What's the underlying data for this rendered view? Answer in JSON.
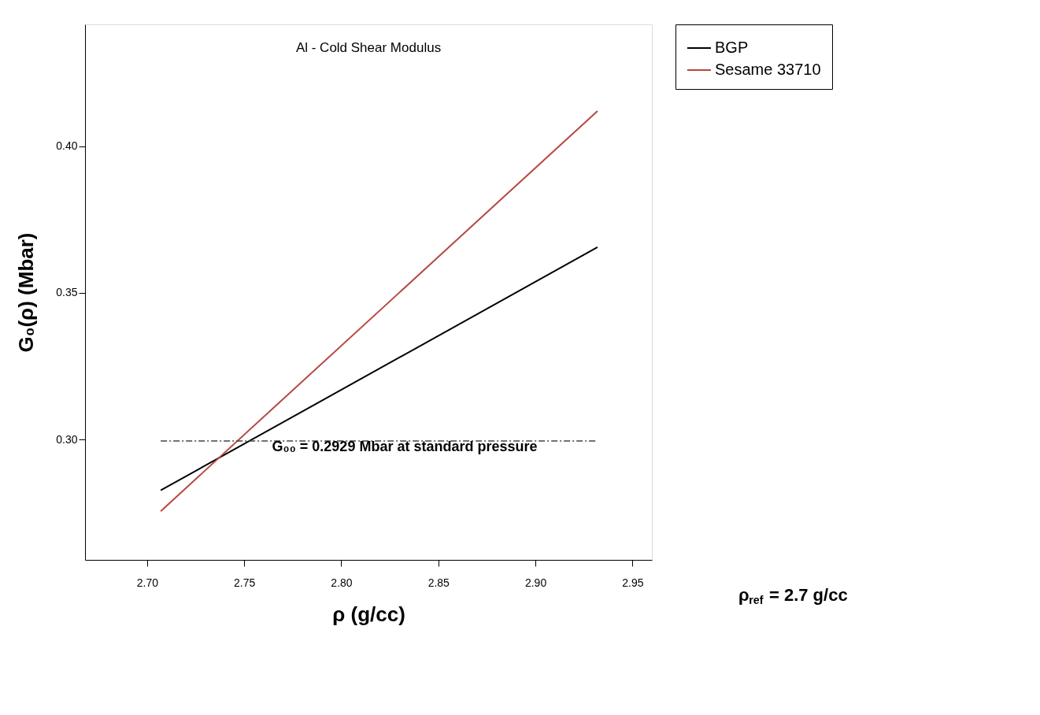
{
  "chart_data": {
    "type": "line",
    "title": "Al - Cold Shear Modulus",
    "xlabel": "ρ (g/cc)",
    "ylabel": "G₀(ρ) (Mbar)",
    "xlim": [
      2.668,
      2.96
    ],
    "xticks": [
      {
        "value": 2.7,
        "label": "2.70"
      },
      2.75,
      {
        "value": 2.8,
        "label": "2.80"
      },
      2.85,
      {
        "value": 2.9,
        "label": "2.90"
      },
      2.95
    ],
    "ylim": [
      0.259,
      0.4415
    ],
    "yticks": [
      {
        "value": 0.3,
        "label": "0.30"
      },
      0.35,
      {
        "value": 0.4,
        "label": "0.40"
      }
    ],
    "grid": false,
    "legend": "top right",
    "line_style": "solid",
    "x": [
      2.707,
      2.932
    ],
    "series": [
      {
        "name": "BGP",
        "color": "#000000",
        "values": [
          0.2827,
          0.3656
        ]
      },
      {
        "name": "Sesame 33710",
        "color": "#b5473f",
        "values": [
          0.2756,
          0.412
        ]
      },
      {
        "color": "#444444",
        "line_style": "dashed",
        "values": [
          0.2995,
          0.2995
        ]
      }
    ],
    "annotations": [
      "G₀₀ = 0.2929 Mbar at standard pressure",
      "ρ$_{ref}$ = 2.7 g/cc"
    ]
  }
}
